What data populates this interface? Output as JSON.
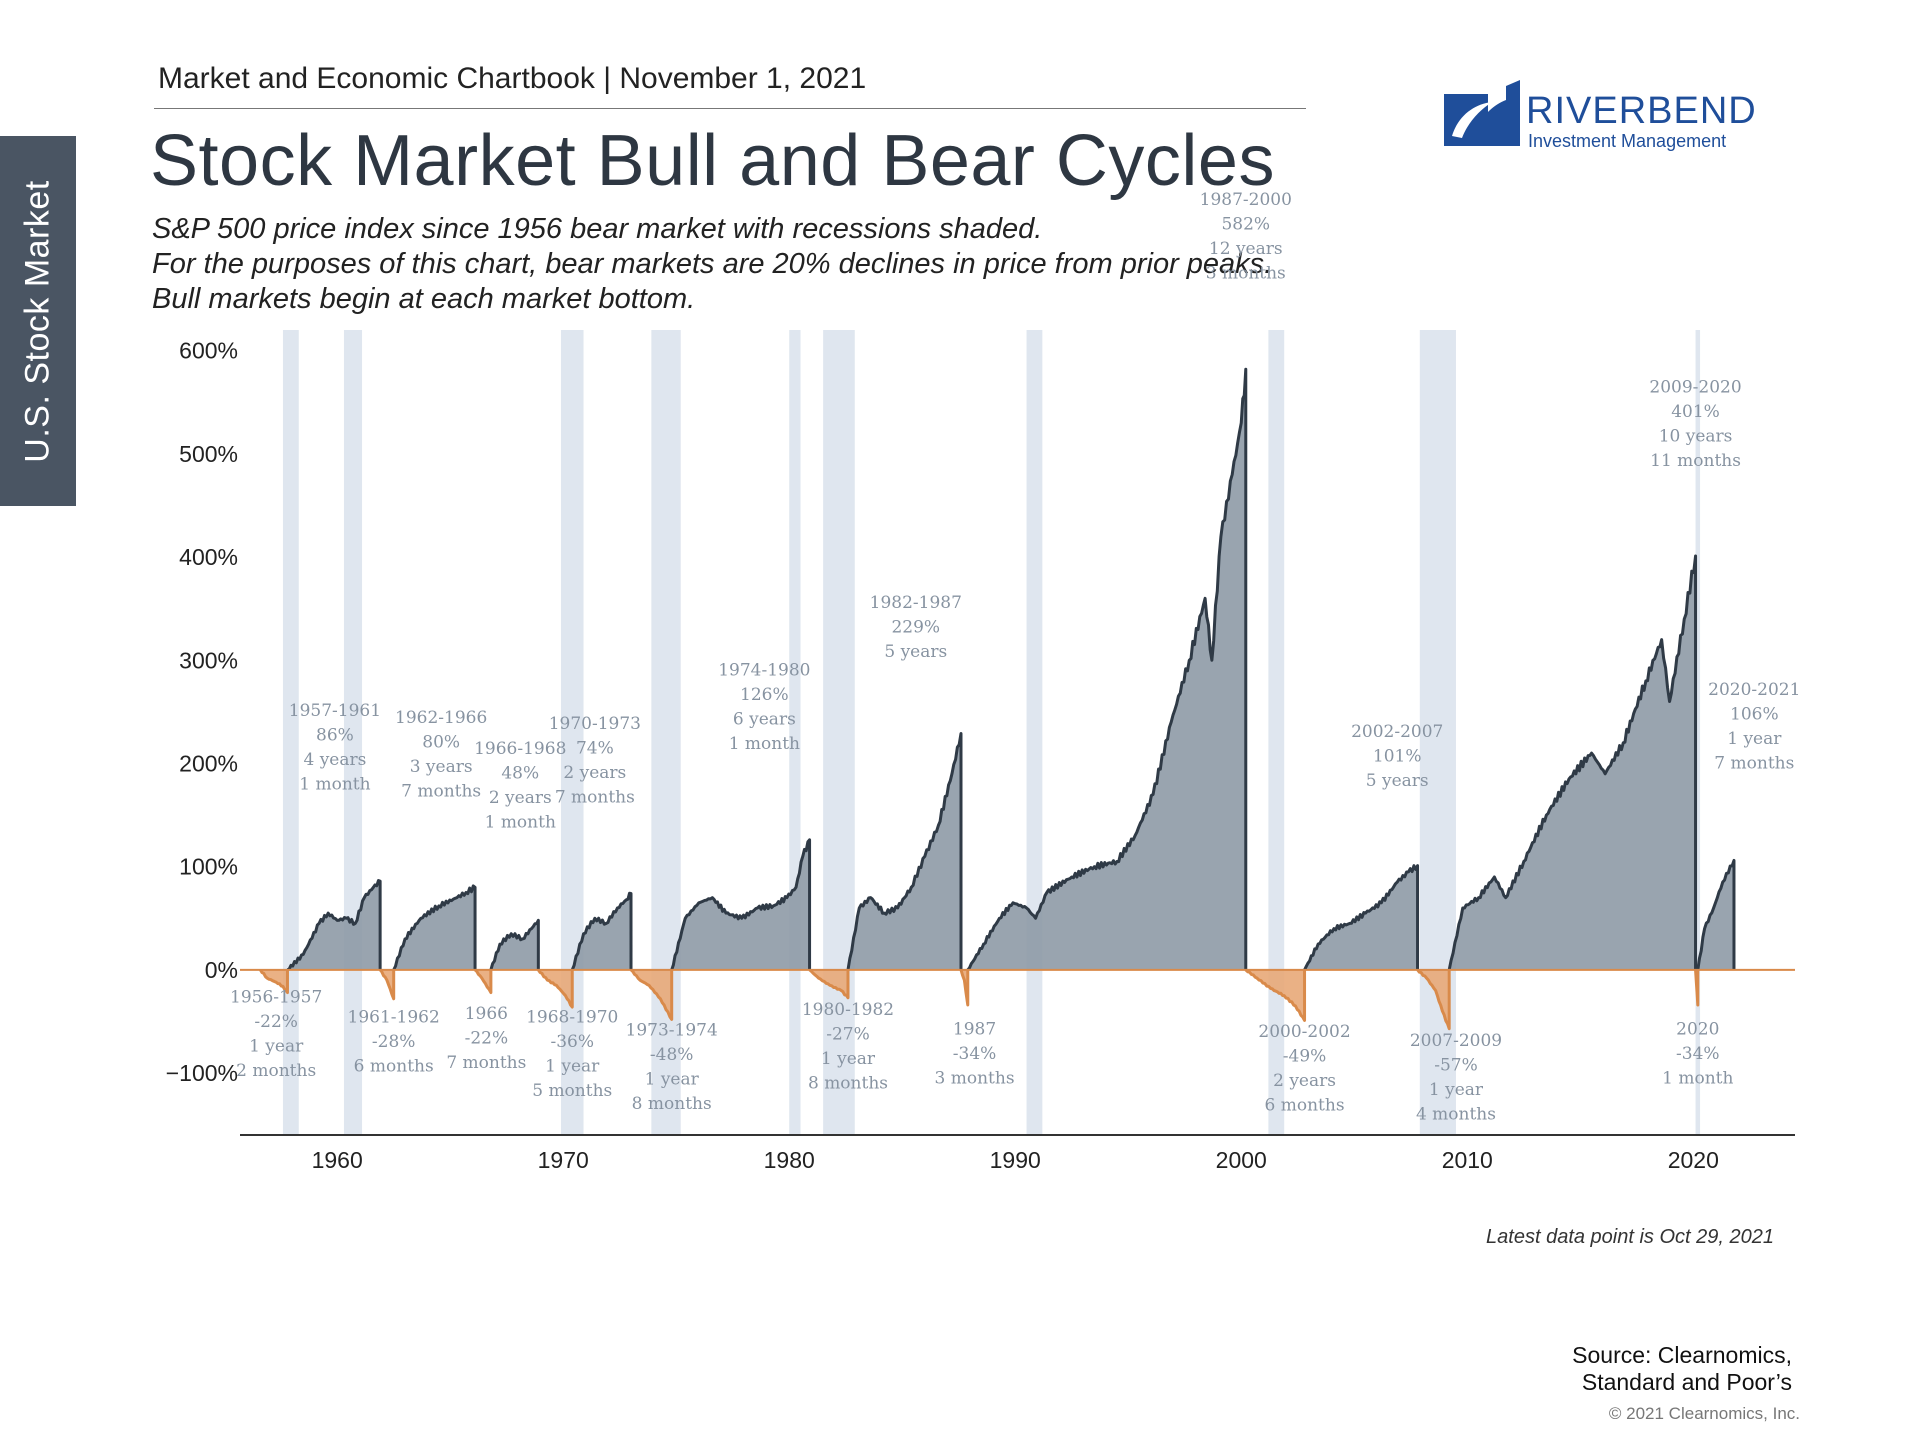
{
  "side_tab": "U.S. Stock Market",
  "header": "Market and Economic Chartbook | November 1, 2021",
  "title": "Stock Market Bull and Bear Cycles",
  "subtitle": [
    "S&P 500 price index since 1956 bear market with recessions shaded.",
    "For the purposes of this chart, bear markets are 20% declines in price from prior peaks.",
    "Bull markets begin at each market bottom."
  ],
  "logo": {
    "name": "RIVERBEND",
    "tagline": "Investment Management",
    "color": "#1f4e9a"
  },
  "note": "Latest data point is Oct 29, 2021",
  "source": [
    "Source: Clearnomics,",
    "Standard and Poor’s"
  ],
  "copyright": "© 2021 Clearnomics, Inc.",
  "colors": {
    "bull": "#8e9aa6",
    "bull_line": "#2f3a46",
    "bear": "#e8a878",
    "bear_line": "#d98a4a",
    "recession": "#dfe6ef"
  },
  "chart_data": {
    "type": "area",
    "xlim": [
      1955.7,
      2024.5
    ],
    "ylim": [
      -160,
      620
    ],
    "yticks": [
      {
        "value": 600,
        "label": "600%"
      },
      {
        "value": 500,
        "label": "500%"
      },
      {
        "value": 400,
        "label": "400%"
      },
      {
        "value": 300,
        "label": "300%"
      },
      {
        "value": 200,
        "label": "200%"
      },
      {
        "value": 100,
        "label": "100%"
      },
      {
        "value": 0,
        "label": "0%"
      },
      {
        "value": -100,
        "label": "−100%"
      }
    ],
    "xticks": [
      {
        "value": 1960,
        "label": "1960"
      },
      {
        "value": 1970,
        "label": "1970"
      },
      {
        "value": 1980,
        "label": "1980"
      },
      {
        "value": 1990,
        "label": "1990"
      },
      {
        "value": 2000,
        "label": "2000"
      },
      {
        "value": 2010,
        "label": "2010"
      },
      {
        "value": 2020,
        "label": "2020"
      }
    ],
    "recessions": [
      [
        1957.6,
        1958.3
      ],
      [
        1960.3,
        1961.1
      ],
      [
        1969.9,
        1970.9
      ],
      [
        1973.9,
        1975.2
      ],
      [
        1980.0,
        1980.5
      ],
      [
        1981.5,
        1982.9
      ],
      [
        1990.5,
        1991.2
      ],
      [
        2001.2,
        2001.9
      ],
      [
        2007.9,
        2009.5
      ],
      [
        2020.1,
        2020.3
      ]
    ],
    "bull_markets": [
      {
        "start": 1957.8,
        "end": 1961.9,
        "peak": 86,
        "points": [
          [
            1957.8,
            0
          ],
          [
            1958.5,
            15
          ],
          [
            1959.2,
            45
          ],
          [
            1959.6,
            55
          ],
          [
            1960.0,
            48
          ],
          [
            1960.4,
            50
          ],
          [
            1960.8,
            45
          ],
          [
            1961.2,
            70
          ],
          [
            1961.6,
            80
          ],
          [
            1961.9,
            86
          ]
        ],
        "label": [
          "1957-1961",
          "86%",
          "4 years",
          "1 month"
        ],
        "label_x": 1959.9,
        "label_y": 175
      },
      {
        "start": 1962.5,
        "end": 1966.1,
        "peak": 80,
        "points": [
          [
            1962.5,
            0
          ],
          [
            1963.0,
            30
          ],
          [
            1963.7,
            50
          ],
          [
            1964.5,
            62
          ],
          [
            1965.3,
            70
          ],
          [
            1965.7,
            75
          ],
          [
            1966.1,
            80
          ]
        ],
        "label": [
          "1962-1966",
          "80%",
          "3 years",
          "7 months"
        ],
        "label_x": 1964.6,
        "label_y": 168
      },
      {
        "start": 1966.8,
        "end": 1968.9,
        "peak": 48,
        "points": [
          [
            1966.8,
            0
          ],
          [
            1967.2,
            25
          ],
          [
            1967.7,
            35
          ],
          [
            1968.2,
            30
          ],
          [
            1968.6,
            40
          ],
          [
            1968.9,
            48
          ]
        ],
        "label": [
          "1966-1968",
          "48%",
          "2 years",
          "1 month"
        ],
        "label_x": 1968.1,
        "label_y": 138
      },
      {
        "start": 1970.4,
        "end": 1973.0,
        "peak": 74,
        "points": [
          [
            1970.4,
            0
          ],
          [
            1970.9,
            35
          ],
          [
            1971.4,
            50
          ],
          [
            1971.9,
            45
          ],
          [
            1972.4,
            60
          ],
          [
            1972.8,
            68
          ],
          [
            1973.0,
            74
          ]
        ],
        "label": [
          "1970-1973",
          "74%",
          "2 years",
          "7 months"
        ],
        "label_x": 1971.4,
        "label_y": 162
      },
      {
        "start": 1974.8,
        "end": 1980.9,
        "peak": 126,
        "points": [
          [
            1974.8,
            0
          ],
          [
            1975.4,
            50
          ],
          [
            1976.0,
            65
          ],
          [
            1976.6,
            70
          ],
          [
            1977.2,
            55
          ],
          [
            1977.9,
            50
          ],
          [
            1978.6,
            60
          ],
          [
            1979.3,
            62
          ],
          [
            1979.9,
            70
          ],
          [
            1980.3,
            80
          ],
          [
            1980.6,
            110
          ],
          [
            1980.9,
            126
          ]
        ],
        "label": [
          "1974-1980",
          "126%",
          "6 years",
          "1 month"
        ],
        "label_x": 1978.9,
        "label_y": 214
      },
      {
        "start": 1982.6,
        "end": 1987.6,
        "peak": 229,
        "points": [
          [
            1982.6,
            0
          ],
          [
            1983.1,
            60
          ],
          [
            1983.6,
            70
          ],
          [
            1984.2,
            55
          ],
          [
            1984.8,
            60
          ],
          [
            1985.4,
            80
          ],
          [
            1986.0,
            110
          ],
          [
            1986.6,
            140
          ],
          [
            1987.2,
            190
          ],
          [
            1987.6,
            229
          ]
        ],
        "label": [
          "1982-1987",
          "229%",
          "5 years"
        ],
        "label_x": 1985.6,
        "label_y": 303
      },
      {
        "start": 1987.9,
        "end": 2000.2,
        "peak": 582,
        "points": [
          [
            1987.9,
            0
          ],
          [
            1988.6,
            25
          ],
          [
            1989.3,
            50
          ],
          [
            1989.9,
            65
          ],
          [
            1990.5,
            60
          ],
          [
            1990.9,
            50
          ],
          [
            1991.4,
            75
          ],
          [
            1992.5,
            90
          ],
          [
            1993.5,
            100
          ],
          [
            1994.5,
            105
          ],
          [
            1995.3,
            130
          ],
          [
            1996.1,
            170
          ],
          [
            1996.9,
            240
          ],
          [
            1997.7,
            300
          ],
          [
            1998.4,
            360
          ],
          [
            1998.7,
            300
          ],
          [
            1999.1,
            420
          ],
          [
            1999.6,
            480
          ],
          [
            2000.0,
            530
          ],
          [
            2000.2,
            582
          ]
        ],
        "label": [
          "1987-2000",
          "582%",
          "12 years",
          "3 months"
        ],
        "label_x": 2000.2,
        "label_y": 670
      },
      {
        "start": 2002.8,
        "end": 2007.8,
        "peak": 101,
        "points": [
          [
            2002.8,
            0
          ],
          [
            2003.4,
            25
          ],
          [
            2004.1,
            40
          ],
          [
            2004.8,
            45
          ],
          [
            2005.5,
            55
          ],
          [
            2006.2,
            65
          ],
          [
            2006.9,
            85
          ],
          [
            2007.4,
            95
          ],
          [
            2007.8,
            101
          ]
        ],
        "label": [
          "2002-2007",
          "101%",
          "5 years"
        ],
        "label_x": 2006.9,
        "label_y": 178
      },
      {
        "start": 2009.2,
        "end": 2020.1,
        "peak": 401,
        "points": [
          [
            2009.2,
            0
          ],
          [
            2009.8,
            60
          ],
          [
            2010.5,
            70
          ],
          [
            2011.2,
            90
          ],
          [
            2011.7,
            70
          ],
          [
            2012.5,
            105
          ],
          [
            2013.5,
            150
          ],
          [
            2014.5,
            185
          ],
          [
            2015.5,
            210
          ],
          [
            2016.1,
            190
          ],
          [
            2016.9,
            220
          ],
          [
            2017.9,
            280
          ],
          [
            2018.6,
            320
          ],
          [
            2018.95,
            260
          ],
          [
            2019.6,
            340
          ],
          [
            2020.1,
            401
          ]
        ],
        "label": [
          "2009-2020",
          "401%",
          "10 years",
          "11 months"
        ],
        "label_x": 2020.1,
        "label_y": 488
      },
      {
        "start": 2020.2,
        "end": 2021.8,
        "peak": 106,
        "points": [
          [
            2020.2,
            0
          ],
          [
            2020.5,
            40
          ],
          [
            2020.9,
            60
          ],
          [
            2021.3,
            85
          ],
          [
            2021.8,
            106
          ]
        ],
        "label": [
          "2020-2021",
          "106%",
          "1 year",
          "7 months"
        ],
        "label_x": 2022.7,
        "label_y": 195
      }
    ],
    "bear_markets": [
      {
        "start": 1956.6,
        "end": 1957.8,
        "trough": -22,
        "points": [
          [
            1956.6,
            0
          ],
          [
            1956.9,
            -8
          ],
          [
            1957.3,
            -12
          ],
          [
            1957.6,
            -16
          ],
          [
            1957.8,
            -22
          ]
        ],
        "label": [
          "1956-1957",
          "-22%",
          "1 year",
          "2 months"
        ],
        "label_x": 1957.3,
        "label_y": -26
      },
      {
        "start": 1961.9,
        "end": 1962.5,
        "trough": -28,
        "points": [
          [
            1961.9,
            0
          ],
          [
            1962.2,
            -10
          ],
          [
            1962.5,
            -28
          ]
        ],
        "label": [
          "1961-1962",
          "-28%",
          "6 months"
        ],
        "label_x": 1962.5,
        "label_y": -45
      },
      {
        "start": 1966.1,
        "end": 1966.8,
        "trough": -22,
        "points": [
          [
            1966.1,
            0
          ],
          [
            1966.4,
            -8
          ],
          [
            1966.8,
            -22
          ]
        ],
        "label": [
          "1966",
          "-22%",
          "7 months"
        ],
        "label_x": 1966.6,
        "label_y": -42
      },
      {
        "start": 1968.9,
        "end": 1970.4,
        "trough": -36,
        "points": [
          [
            1968.9,
            0
          ],
          [
            1969.3,
            -10
          ],
          [
            1969.7,
            -15
          ],
          [
            1970.1,
            -25
          ],
          [
            1970.4,
            -36
          ]
        ],
        "label": [
          "1968-1970",
          "-36%",
          "1 year",
          "5 months"
        ],
        "label_x": 1970.4,
        "label_y": -45
      },
      {
        "start": 1973.0,
        "end": 1974.8,
        "trough": -48,
        "points": [
          [
            1973.0,
            0
          ],
          [
            1973.4,
            -10
          ],
          [
            1973.8,
            -15
          ],
          [
            1974.3,
            -28
          ],
          [
            1974.8,
            -48
          ]
        ],
        "label": [
          "1973-1974",
          "-48%",
          "1 year",
          "8 months"
        ],
        "label_x": 1974.8,
        "label_y": -58
      },
      {
        "start": 1980.9,
        "end": 1982.6,
        "trough": -27,
        "points": [
          [
            1980.9,
            0
          ],
          [
            1981.3,
            -8
          ],
          [
            1981.8,
            -15
          ],
          [
            1982.3,
            -20
          ],
          [
            1982.6,
            -27
          ]
        ],
        "label": [
          "1980-1982",
          "-27%",
          "1 year",
          "8 months"
        ],
        "label_x": 1982.6,
        "label_y": -38
      },
      {
        "start": 1987.6,
        "end": 1987.9,
        "trough": -34,
        "points": [
          [
            1987.6,
            0
          ],
          [
            1987.75,
            -10
          ],
          [
            1987.9,
            -34
          ]
        ],
        "label": [
          "1987",
          "-34%",
          "3 months"
        ],
        "label_x": 1988.2,
        "label_y": -57
      },
      {
        "start": 2000.2,
        "end": 2002.8,
        "trough": -49,
        "points": [
          [
            2000.2,
            0
          ],
          [
            2000.7,
            -8
          ],
          [
            2001.3,
            -18
          ],
          [
            2001.9,
            -25
          ],
          [
            2002.4,
            -35
          ],
          [
            2002.8,
            -49
          ]
        ],
        "label": [
          "2000-2002",
          "-49%",
          "2 years",
          "6 months"
        ],
        "label_x": 2002.8,
        "label_y": -59
      },
      {
        "start": 2007.8,
        "end": 2009.2,
        "trough": -57,
        "points": [
          [
            2007.8,
            0
          ],
          [
            2008.2,
            -8
          ],
          [
            2008.6,
            -20
          ],
          [
            2008.9,
            -40
          ],
          [
            2009.2,
            -57
          ]
        ],
        "label": [
          "2007-2009",
          "-57%",
          "1 year",
          "4 months"
        ],
        "label_x": 2009.5,
        "label_y": -68
      },
      {
        "start": 2020.1,
        "end": 2020.2,
        "trough": -34,
        "points": [
          [
            2020.1,
            0
          ],
          [
            2020.2,
            -34
          ]
        ],
        "label": [
          "2020",
          "-34%",
          "1 month"
        ],
        "label_x": 2020.2,
        "label_y": -57
      }
    ]
  }
}
